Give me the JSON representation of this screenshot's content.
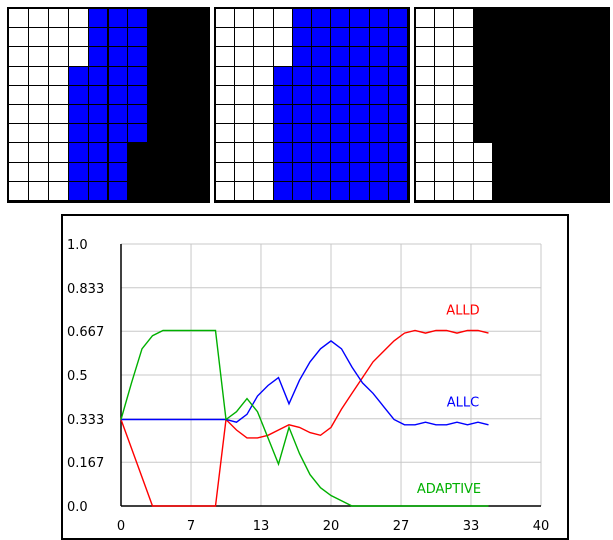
{
  "panels": [
    {
      "name": "grid-left",
      "rows": [
        "wwwwbbbkkk",
        "wwwwbbbkkk",
        "wwwwbbbkkk",
        "wwwbbbbkkk",
        "wwwbbbbkkk",
        "wwwbbbbkkk",
        "wwwbbbbkkk",
        "wwwbbbkkkk",
        "wwwbbbkkkk",
        "wwwbbbkkkk"
      ]
    },
    {
      "name": "grid-middle",
      "rows": [
        "wwwwbbbbbb",
        "wwwwbbbbbb",
        "wwwwbbbbbb",
        "wwwbbbbbbb",
        "wwwbbbbbbb",
        "wwwbbbbbbb",
        "wwwbbbbbbb",
        "wwwbbbbbbb",
        "wwwbbbbbbb",
        "wwwbbbbbbb"
      ]
    },
    {
      "name": "grid-right",
      "rows": [
        "wwwkkkkkkk",
        "wwwkkkkkkk",
        "wwwkkkkkkk",
        "wwwkkkkkkk",
        "wwwkkkkkkk",
        "wwwkkkkkkk",
        "wwwkkkkkkk",
        "wwwwkkkkkk",
        "wwwwkkkkkk",
        "wwwwkkkkkk"
      ]
    }
  ],
  "colors": {
    "w": "#ffffff",
    "b": "#0000ff",
    "k": "#000000",
    "grid": "#c8c8c8"
  },
  "chart_data": {
    "type": "line",
    "title": "",
    "xlabel": "",
    "ylabel": "",
    "xlim": [
      0,
      40
    ],
    "ylim": [
      0,
      1
    ],
    "x_ticks": [
      {
        "value": 0,
        "label": "0"
      },
      {
        "value": 6.67,
        "label": "7"
      },
      {
        "value": 13.33,
        "label": "13"
      },
      {
        "value": 20,
        "label": "20"
      },
      {
        "value": 26.67,
        "label": "27"
      },
      {
        "value": 33.33,
        "label": "33"
      },
      {
        "value": 40,
        "label": "40"
      }
    ],
    "y_ticks": [
      {
        "value": 0,
        "label": "0.0"
      },
      {
        "value": 0.167,
        "label": "0.167"
      },
      {
        "value": 0.333,
        "label": "0.333"
      },
      {
        "value": 0.5,
        "label": "0.5"
      },
      {
        "value": 0.667,
        "label": "0.667"
      },
      {
        "value": 0.833,
        "label": "0.833"
      },
      {
        "value": 1.0,
        "label": "1.0"
      }
    ],
    "grid": true,
    "series": [
      {
        "name": "ALLD",
        "color": "#ff0000",
        "x": [
          0,
          3,
          4,
          5,
          6,
          7,
          8,
          9,
          10,
          11,
          12,
          13,
          14,
          15,
          16,
          17,
          18,
          19,
          20,
          21,
          22,
          23,
          24,
          25,
          26,
          27,
          28,
          29,
          30,
          31,
          32,
          33,
          34,
          35
        ],
        "y": [
          0.33,
          0.0,
          0.0,
          0.0,
          0.0,
          0.0,
          0.0,
          0.0,
          0.33,
          0.29,
          0.26,
          0.26,
          0.27,
          0.29,
          0.31,
          0.3,
          0.28,
          0.27,
          0.3,
          0.37,
          0.43,
          0.49,
          0.55,
          0.59,
          0.63,
          0.66,
          0.67,
          0.66,
          0.67,
          0.67,
          0.66,
          0.67,
          0.67,
          0.66
        ]
      },
      {
        "name": "ALLC",
        "color": "#0000ff",
        "x": [
          0,
          2,
          4,
          6,
          8,
          9,
          10,
          11,
          12,
          13,
          14,
          15,
          16,
          17,
          18,
          19,
          20,
          21,
          22,
          23,
          24,
          25,
          26,
          27,
          28,
          29,
          30,
          31,
          32,
          33,
          34,
          35
        ],
        "y": [
          0.33,
          0.33,
          0.33,
          0.33,
          0.33,
          0.33,
          0.33,
          0.32,
          0.35,
          0.42,
          0.46,
          0.49,
          0.39,
          0.48,
          0.55,
          0.6,
          0.63,
          0.6,
          0.53,
          0.47,
          0.43,
          0.38,
          0.33,
          0.31,
          0.31,
          0.32,
          0.31,
          0.31,
          0.32,
          0.31,
          0.32,
          0.31
        ]
      },
      {
        "name": "ADAPTIVE",
        "color": "#00b000",
        "x": [
          0,
          1,
          2,
          3,
          4,
          5,
          6,
          7,
          8,
          9,
          10,
          11,
          12,
          13,
          14,
          15,
          16,
          17,
          18,
          19,
          20,
          21,
          22,
          24,
          26,
          28,
          30,
          32,
          35
        ],
        "y": [
          0.33,
          0.47,
          0.6,
          0.65,
          0.67,
          0.67,
          0.67,
          0.67,
          0.67,
          0.67,
          0.33,
          0.36,
          0.41,
          0.36,
          0.26,
          0.16,
          0.3,
          0.2,
          0.12,
          0.07,
          0.04,
          0.02,
          0.0,
          0.0,
          0.0,
          0.0,
          0.0,
          0.0,
          0.0
        ]
      }
    ],
    "annotations": [
      {
        "text": "ALLD",
        "series": 0
      },
      {
        "text": "ALLC",
        "series": 1
      },
      {
        "text": "ADAPTIVE",
        "series": 2
      }
    ]
  }
}
